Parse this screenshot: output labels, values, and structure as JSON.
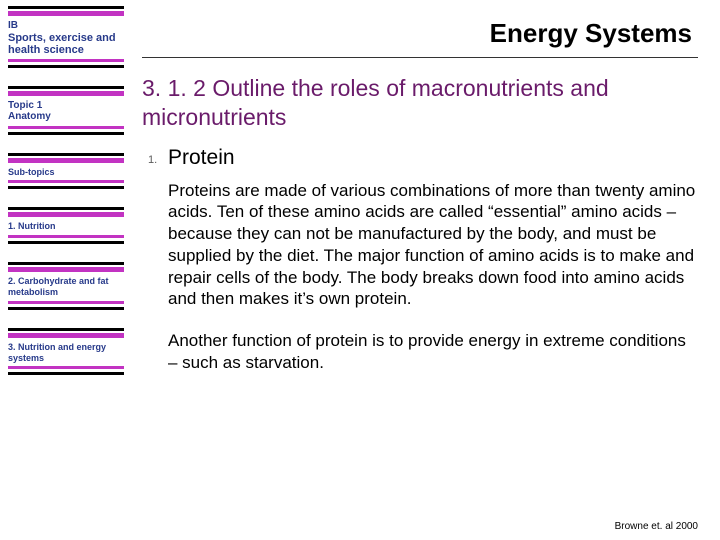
{
  "sidebar": {
    "course_code": "IB",
    "subject": "Sports, exercise and health science",
    "topic_label": "Topic 1",
    "topic_name": "Anatomy",
    "subtopics_label": "Sub-topics",
    "items": [
      "1. Nutrition",
      "2. Carbohydrate and fat metabolism",
      "3. Nutrition and energy systems"
    ]
  },
  "main": {
    "title": "Energy Systems",
    "heading": "3. 1. 2 Outline the roles of macronutrients and micronutrients",
    "list_number": "1.",
    "list_title": "Protein",
    "para1": "Proteins are made of various combinations of more than twenty amino acids. Ten of these amino acids are called “essential” amino acids – because they can not be manufactured by the body, and must be supplied by the diet. The major function of amino acids is to make and repair cells of the body. The body breaks down food into amino acids and then makes it’s own protein.",
    "para2": "Another function of protein is to provide energy in extreme conditions – such as starvation.",
    "citation": "Browne et. al 2000"
  }
}
